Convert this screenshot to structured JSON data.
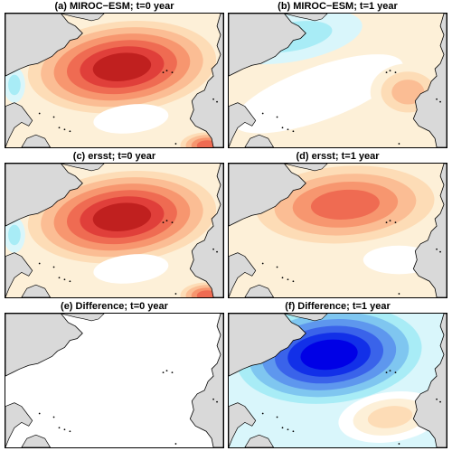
{
  "figure": {
    "panels": [
      {
        "id": "a",
        "title": "(a) MIROC−ESM; t=0 year",
        "pattern": "warm-strong"
      },
      {
        "id": "b",
        "title": "(b) MIROC−ESM; t=1 year",
        "pattern": "weak-mixed"
      },
      {
        "id": "c",
        "title": "(c) ersst; t=0 year",
        "pattern": "warm-strong"
      },
      {
        "id": "d",
        "title": "(d) ersst; t=1 year",
        "pattern": "warm-moderate"
      },
      {
        "id": "e",
        "title": "(e) Difference; t=0 year",
        "pattern": "zero"
      },
      {
        "id": "f",
        "title": "(f) Difference; t=1 year",
        "pattern": "cold-strong"
      }
    ],
    "colors": {
      "land": "#d9d9d9",
      "coast": "#000000",
      "warm_scale": [
        "#fdf0d8",
        "#fddcb6",
        "#fbbd94",
        "#f7966f",
        "#ef6b52",
        "#e03f3a",
        "#c0201f"
      ],
      "cool_scale": [
        "#d9f6fb",
        "#a8ecf6",
        "#7fc6f0",
        "#5e97ee",
        "#3a63ea",
        "#1230e8",
        "#0000e6"
      ],
      "neutral": "#ffffff"
    }
  }
}
